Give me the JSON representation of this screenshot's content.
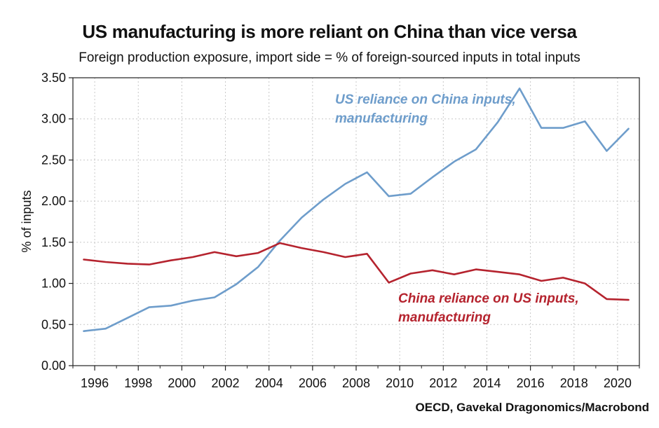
{
  "chart_data": {
    "type": "line",
    "title": "US manufacturing is more reliant on China than vice versa",
    "subtitle": "Foreign production exposure, import side = % of foreign-sourced inputs in total inputs",
    "ylabel": "% of inputs",
    "xlabel": "",
    "source": "OECD, Gavekal Dragonomics/Macrobond",
    "xlim": [
      1995,
      2021
    ],
    "ylim": [
      0,
      3.5
    ],
    "yticks": [
      "0.00",
      "0.50",
      "1.00",
      "1.50",
      "2.00",
      "2.50",
      "3.00",
      "3.50"
    ],
    "xticks": [
      "1996",
      "1998",
      "2000",
      "2002",
      "2004",
      "2006",
      "2008",
      "2010",
      "2012",
      "2014",
      "2016",
      "2018",
      "2020"
    ],
    "grid": true,
    "x": [
      1995.5,
      1996.5,
      1997.5,
      1998.5,
      1999.5,
      2000.5,
      2001.5,
      2002.5,
      2003.5,
      2004.5,
      2005.5,
      2006.5,
      2007.5,
      2008.5,
      2009.5,
      2010.5,
      2011.5,
      2012.5,
      2013.5,
      2014.5,
      2015.5,
      2016.5,
      2017.5,
      2018.5,
      2019.5,
      2020.5
    ],
    "series": [
      {
        "name": "US reliance on China inputs, manufacturing",
        "color": "#6e9dcb",
        "values": [
          0.42,
          0.45,
          0.58,
          0.71,
          0.73,
          0.79,
          0.83,
          0.99,
          1.2,
          1.52,
          1.8,
          2.02,
          2.21,
          2.35,
          2.06,
          2.09,
          2.29,
          2.48,
          2.63,
          2.96,
          3.37,
          2.89,
          2.89,
          2.97,
          2.61,
          2.88
        ]
      },
      {
        "name": "China reliance on US inputs, manufacturing",
        "color": "#b5232e",
        "values": [
          1.29,
          1.26,
          1.24,
          1.23,
          1.28,
          1.32,
          1.38,
          1.33,
          1.37,
          1.49,
          1.43,
          1.38,
          1.32,
          1.36,
          1.01,
          1.12,
          1.16,
          1.11,
          1.17,
          1.14,
          1.11,
          1.03,
          1.07,
          1.0,
          0.81,
          0.8
        ]
      }
    ],
    "annotations": [
      {
        "series": 0,
        "lines": [
          "US reliance on China inputs,",
          "manufacturing"
        ]
      },
      {
        "series": 1,
        "lines": [
          "China reliance on US inputs,",
          "manufacturing"
        ]
      }
    ]
  }
}
